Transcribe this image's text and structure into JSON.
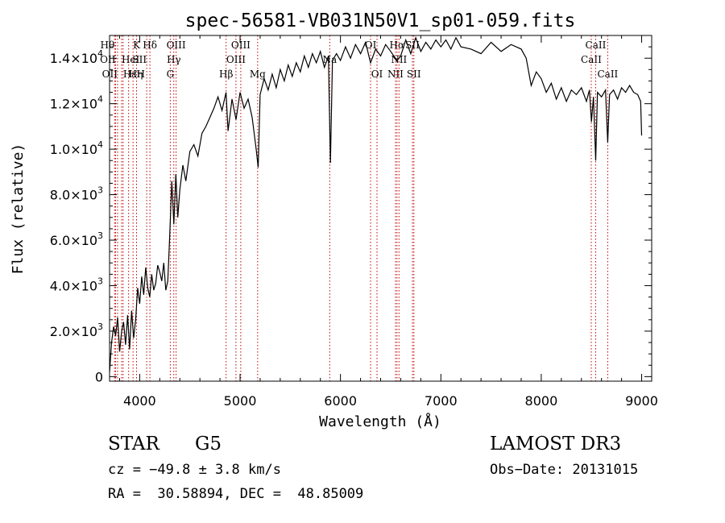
{
  "chart_data": {
    "type": "line",
    "title": "spec-56581-VB031N50V1_sp01-059.fits",
    "xlabel": "Wavelength (Å)",
    "ylabel": "Flux (relative)",
    "xlim": [
      3700,
      9100
    ],
    "ylim": [
      -200,
      15000
    ],
    "x_ticks": [
      {
        "value": 4000,
        "label": "4000"
      },
      {
        "value": 5000,
        "label": "5000"
      },
      {
        "value": 6000,
        "label": "6000"
      },
      {
        "value": 7000,
        "label": "7000"
      },
      {
        "value": 8000,
        "label": "8000"
      },
      {
        "value": 9000,
        "label": "9000"
      }
    ],
    "y_ticks": [
      {
        "value": 0,
        "mant": "0",
        "exp": ""
      },
      {
        "value": 2000,
        "mant": "2.0×10",
        "exp": "3"
      },
      {
        "value": 4000,
        "mant": "4.0×10",
        "exp": "3"
      },
      {
        "value": 6000,
        "mant": "6.0×10",
        "exp": "3"
      },
      {
        "value": 8000,
        "mant": "8.0×10",
        "exp": "3"
      },
      {
        "value": 10000,
        "mant": "1.0×10",
        "exp": "4"
      },
      {
        "value": 12000,
        "mant": "1.2×10",
        "exp": "4"
      },
      {
        "value": 14000,
        "mant": "1.4×10",
        "exp": "4"
      }
    ],
    "series": [
      {
        "name": "spectrum",
        "x": [
          3700,
          3720,
          3740,
          3760,
          3780,
          3800,
          3820,
          3840,
          3860,
          3880,
          3900,
          3920,
          3940,
          3960,
          3980,
          4000,
          4020,
          4040,
          4060,
          4080,
          4100,
          4120,
          4140,
          4160,
          4180,
          4200,
          4220,
          4240,
          4260,
          4280,
          4300,
          4320,
          4340,
          4360,
          4380,
          4400,
          4430,
          4460,
          4500,
          4540,
          4580,
          4620,
          4660,
          4700,
          4740,
          4780,
          4820,
          4860,
          4880,
          4920,
          4960,
          5000,
          5040,
          5080,
          5120,
          5160,
          5180,
          5200,
          5240,
          5280,
          5320,
          5360,
          5400,
          5440,
          5480,
          5520,
          5560,
          5600,
          5640,
          5680,
          5720,
          5760,
          5800,
          5840,
          5880,
          5890,
          5900,
          5920,
          5960,
          6000,
          6050,
          6100,
          6150,
          6200,
          6250,
          6300,
          6350,
          6400,
          6450,
          6500,
          6563,
          6600,
          6650,
          6700,
          6750,
          6800,
          6850,
          6900,
          6950,
          7000,
          7050,
          7100,
          7150,
          7200,
          7300,
          7400,
          7500,
          7600,
          7700,
          7800,
          7850,
          7900,
          7950,
          8000,
          8050,
          8100,
          8150,
          8200,
          8250,
          8300,
          8350,
          8400,
          8450,
          8480,
          8500,
          8520,
          8542,
          8560,
          8600,
          8640,
          8662,
          8680,
          8720,
          8760,
          8800,
          8840,
          8880,
          8920,
          8960,
          8990,
          9000
        ],
        "values": [
          200,
          1500,
          2200,
          1800,
          2600,
          1100,
          2000,
          2400,
          1400,
          2700,
          1200,
          2900,
          1700,
          2500,
          3900,
          3200,
          4400,
          3600,
          4800,
          3900,
          3500,
          4500,
          3800,
          4100,
          4900,
          4600,
          4200,
          5000,
          3800,
          4200,
          6300,
          8600,
          6700,
          8900,
          7000,
          8200,
          9300,
          8600,
          9900,
          10200,
          9700,
          10700,
          11000,
          11400,
          11800,
          12300,
          11700,
          12500,
          10800,
          12200,
          11300,
          12500,
          11800,
          12200,
          11400,
          10000,
          9200,
          12400,
          13100,
          12600,
          13300,
          12700,
          13500,
          13000,
          13700,
          13200,
          13800,
          13400,
          14100,
          13600,
          14200,
          13800,
          14300,
          13600,
          14100,
          11800,
          9400,
          13900,
          14200,
          13900,
          14500,
          14000,
          14600,
          14200,
          14700,
          13800,
          14400,
          14100,
          14600,
          14300,
          13900,
          14100,
          14800,
          14200,
          14900,
          14300,
          14700,
          14400,
          14800,
          14500,
          14800,
          14400,
          14900,
          14500,
          14400,
          14200,
          14700,
          14300,
          14600,
          14400,
          14000,
          12800,
          13400,
          13100,
          12500,
          12900,
          12200,
          12700,
          12100,
          12600,
          12400,
          12700,
          12100,
          12600,
          11200,
          12300,
          9500,
          12500,
          12300,
          12600,
          10300,
          12400,
          12600,
          12200,
          12700,
          12500,
          12800,
          12500,
          12400,
          12100,
          10600
        ]
      }
    ],
    "line_markers": [
      {
        "x": 3750,
        "label": "Hθ",
        "row": 0,
        "anchor": "end"
      },
      {
        "x": 3760,
        "label": "OII",
        "row": 1,
        "anchor": "end"
      },
      {
        "x": 3780,
        "label": "OII",
        "row": 2,
        "anchor": "end"
      },
      {
        "x": 3835,
        "label": "Hε",
        "row": 2,
        "anchor": "start"
      },
      {
        "x": 3820,
        "label": "HeI",
        "row": 1,
        "anchor": "start"
      },
      {
        "x": 3890,
        "label": "Hη",
        "row": 2,
        "anchor": "start"
      },
      {
        "x": 3934,
        "label": "K",
        "row": 0,
        "anchor": "start"
      },
      {
        "x": 3969,
        "label": "H",
        "row": 2,
        "anchor": "start"
      },
      {
        "x": 4070,
        "label": "SII",
        "row": 1,
        "anchor": "end"
      },
      {
        "x": 4102,
        "label": "Hδ",
        "row": 0,
        "anchor": "middle"
      },
      {
        "x": 4305,
        "label": "G",
        "row": 2,
        "anchor": "middle"
      },
      {
        "x": 4340,
        "label": "Hγ",
        "row": 1,
        "anchor": "middle"
      },
      {
        "x": 4363,
        "label": "OIII",
        "row": 0,
        "anchor": "middle"
      },
      {
        "x": 4861,
        "label": "Hβ",
        "row": 2,
        "anchor": "middle"
      },
      {
        "x": 4959,
        "label": "OIII",
        "row": 1,
        "anchor": "middle"
      },
      {
        "x": 5007,
        "label": "OIII",
        "row": 0,
        "anchor": "middle"
      },
      {
        "x": 5175,
        "label": "Mg",
        "row": 2,
        "anchor": "middle"
      },
      {
        "x": 5893,
        "label": "Na",
        "row": 1,
        "anchor": "middle"
      },
      {
        "x": 6300,
        "label": "OI",
        "row": 0,
        "anchor": "middle"
      },
      {
        "x": 6364,
        "label": "OI",
        "row": 2,
        "anchor": "middle"
      },
      {
        "x": 6548,
        "label": "NII",
        "row": 2,
        "anchor": "middle"
      },
      {
        "x": 6563,
        "label": "Hα",
        "row": 0,
        "anchor": "middle"
      },
      {
        "x": 6583,
        "label": "NII",
        "row": 1,
        "anchor": "middle"
      },
      {
        "x": 6717,
        "label": "SII",
        "row": 0,
        "anchor": "middle"
      },
      {
        "x": 6731,
        "label": "SII",
        "row": 2,
        "anchor": "middle"
      },
      {
        "x": 8498,
        "label": "CaII",
        "row": 1,
        "anchor": "middle"
      },
      {
        "x": 8542,
        "label": "CaII",
        "row": 0,
        "anchor": "middle"
      },
      {
        "x": 8662,
        "label": "CaII",
        "row": 2,
        "anchor": "middle"
      }
    ]
  },
  "info": {
    "class": "STAR",
    "subclass": "G5",
    "survey": "LAMOST DR3",
    "cz": "cz = −49.8 ± 3.8 km/s",
    "obs_date": "Obs−Date: 20131015",
    "radec": "RA =  30.58894, DEC =  48.85009"
  }
}
